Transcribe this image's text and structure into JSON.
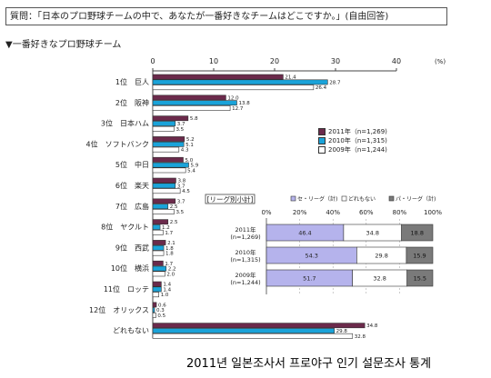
{
  "question": "質問：「日本のプロ野球チームの中で、あなたが一番好きなチームはどこですか。」(自由回答)",
  "section_title": "▼一番好きなプロ野球チーム",
  "caption": "2011년 일본조사서 프로야구 인기 설문조사 통계",
  "colors": {
    "s2011": "#6b2a4b",
    "s2010": "#1aa3d9",
    "s2009": "#ffffff",
    "league_ce": "#b5b3ec",
    "league_none": "#ffffff",
    "league_pa": "#7a7a7a"
  },
  "chart_data": [
    {
      "type": "bar",
      "orientation": "horizontal",
      "xlim": [
        0,
        40
      ],
      "x_ticks": [
        "0",
        "10",
        "20",
        "30",
        "40"
      ],
      "x_unit": "(%)",
      "categories": [
        "1位　巨人",
        "2位　阪神",
        "3位　日本ハム",
        "4位　ソフトバンク",
        "5位　中日",
        "6位　楽天",
        "7位　広島",
        "8位　ヤクルト",
        "9位　西武",
        "10位　横浜",
        "11位　ロッテ",
        "12位　オリックス",
        "どれもない"
      ],
      "series": [
        {
          "name": "2011年（n=1,269)",
          "values": [
            21.4,
            12.0,
            5.8,
            5.2,
            5.0,
            3.8,
            3.7,
            2.5,
            2.1,
            1.7,
            1.4,
            0.6,
            34.8
          ]
        },
        {
          "name": "2010年（n=1,315)",
          "values": [
            28.7,
            13.8,
            3.7,
            5.1,
            5.9,
            3.7,
            2.5,
            1.2,
            1.8,
            2.2,
            1.4,
            0.3,
            29.8
          ]
        },
        {
          "name": "2009年（n=1,244)",
          "values": [
            26.4,
            12.7,
            3.5,
            4.3,
            5.4,
            4.5,
            3.5,
            1.7,
            1.8,
            2.0,
            1.0,
            0.5,
            32.8
          ]
        }
      ]
    },
    {
      "type": "bar",
      "orientation": "horizontal",
      "stacked": true,
      "title": "リーグ別小計",
      "xlim": [
        0,
        100
      ],
      "x_ticks": [
        "0%",
        "20%",
        "40%",
        "60%",
        "80%",
        "100%"
      ],
      "series_labels": [
        "セ・リーグ（計)",
        "どれもない",
        "パ・リーグ（計)"
      ],
      "categories": [
        "2011年\n(n=1,269)",
        "2010年\n(n=1,315)",
        "2009年\n(n=1,244)"
      ],
      "series": [
        {
          "name": "セ・リーグ（計)",
          "values": [
            46.4,
            54.3,
            51.7
          ]
        },
        {
          "name": "どれもない",
          "values": [
            34.8,
            29.8,
            32.8
          ]
        },
        {
          "name": "パ・リーグ（計)",
          "values": [
            18.8,
            15.9,
            15.5
          ]
        }
      ]
    }
  ]
}
